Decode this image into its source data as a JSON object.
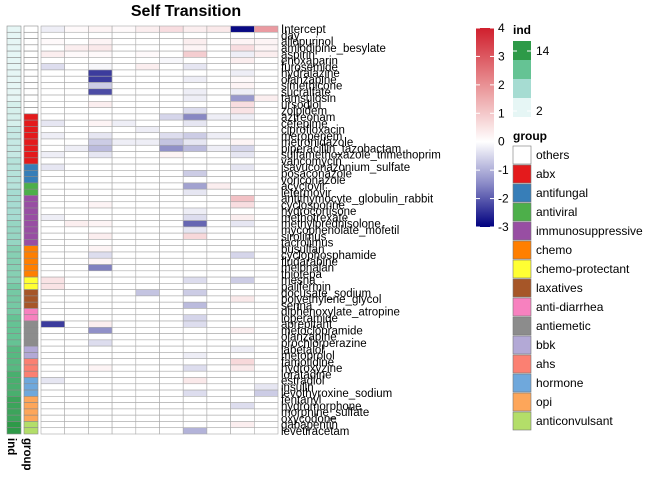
{
  "chart_data": {
    "type": "heatmap",
    "title": "Self Transition",
    "rows": [
      "Intercept",
      "day",
      "allopurinol",
      "amlodipine_besylate",
      "aspirin",
      "enoxaparin",
      "furosemide",
      "hydralazine",
      "olanzapine",
      "simethicone",
      "sucralfate",
      "tamsulosin",
      "ursodiol",
      "zolpidem",
      "aztreonam",
      "cefepime",
      "ciprofloxacin",
      "meropenem",
      "metronidazole",
      "piperacillin_tazobactam",
      "sulfamethoxazole_trimethoprim",
      "vancomycin",
      "isavuconazonium_sulfate",
      "posaconazole",
      "voriconazole",
      "acyclovir",
      "letermovir",
      "antithymocyte_globulin_rabbit",
      "cyclosporine",
      "hydrocortisone",
      "methotrexate",
      "methylprednisolone",
      "mycophenolate_mofetil",
      "sirolimus",
      "tacrolimus",
      "busulfan",
      "cyclophosphamide",
      "fludarabine",
      "melphalan",
      "thiotepa",
      "mesna",
      "palifermin",
      "docusate_sodium",
      "polyethylene_glycol",
      "senna",
      "diphenoxylate_atropine",
      "loperamide",
      "aprepitant",
      "metoclopramide",
      "olanzapine",
      "prochlorperazine",
      "labetalol",
      "metoprolol",
      "famotidine",
      "hydroxyzine",
      "loratadine",
      "estradiol",
      "insulin",
      "levothyroxine_sodium",
      "fentanyl",
      "hydromorphone",
      "morphine_sulfate",
      "oxycodone",
      "gabapentin",
      "levetiracetam"
    ],
    "row_labels_shown": [
      "Intercept",
      "day",
      "allopurinol",
      "amlodipine_besylate",
      "aspirin",
      "enoxaparin",
      "furosemide",
      "hydralazine",
      "olanzapine",
      "simethicone",
      "sucralfate",
      "tamsulosin",
      "ursodiol",
      "zolpidem",
      "aztreonam",
      "cefepime",
      "ciprofloxacin",
      "meropenem",
      "metronidazole",
      "piperacillin_tazobactam",
      "sulfamethoxazole_trimethoprim",
      "vancomycin",
      "isavuconazonium_sulfate",
      "posaconazole",
      "voriconazole",
      "acyclovir",
      "letermovir",
      "antithymocyte_globulin_rabbit",
      "cyclosporine",
      "hydrocortisone",
      "methotrexate",
      "methylprednisolone",
      "mycophenolate_mofetil",
      "sirolimus",
      "tacrolimus",
      "busulfan",
      "cyclophosphamide",
      "fludarabine",
      "melphalan",
      "thiotepa",
      "mesna",
      "palifermin",
      "docusate_sodium",
      "polyethylene_glycol",
      "senna",
      "diphenoxylate_atropine",
      "loperamide",
      "aprepitant",
      "metoclopramide",
      "olanzapine",
      "prochlorperazine",
      "labetalol",
      "metoprolol",
      "famotidine",
      "hydroxyzine",
      "loratadine",
      "estradiol",
      "insulin",
      "levothyroxine_sodium",
      "fentanyl",
      "hydromorphone",
      "morphine_sulfate",
      "oxycodone",
      "gabapentin",
      "levetiracetam"
    ],
    "n_cols": 10,
    "group_seq": [
      "others",
      "others",
      "others",
      "others",
      "others",
      "others",
      "others",
      "others",
      "others",
      "others",
      "others",
      "others",
      "others",
      "others",
      "abx",
      "abx",
      "abx",
      "abx",
      "abx",
      "abx",
      "abx",
      "abx",
      "antifungal",
      "antifungal",
      "antifungal",
      "antiviral",
      "antiviral",
      "immunosuppressive",
      "immunosuppressive",
      "immunosuppressive",
      "immunosuppressive",
      "immunosuppressive",
      "immunosuppressive",
      "immunosuppressive",
      "immunosuppressive",
      "chemo",
      "chemo",
      "chemo",
      "chemo",
      "chemo",
      "chemo-protectant",
      "chemo-protectant",
      "laxatives",
      "laxatives",
      "laxatives",
      "anti-diarrhea",
      "anti-diarrhea",
      "antiemetic",
      "antiemetic",
      "antiemetic",
      "antiemetic",
      "bbk",
      "bbk",
      "ahs",
      "ahs",
      "ahs",
      "hormone",
      "hormone",
      "hormone",
      "opi",
      "opi",
      "opi",
      "opi",
      "anticonvulsant",
      "anticonvulsant"
    ],
    "ind_seq": [
      2,
      2,
      2,
      2,
      2,
      2,
      2,
      2,
      2,
      2,
      2,
      2,
      3,
      3,
      3,
      3,
      4,
      4,
      4,
      4,
      4,
      5,
      5,
      5,
      5,
      5,
      6,
      6,
      6,
      6,
      6,
      7,
      7,
      7,
      7,
      8,
      8,
      8,
      8,
      8,
      8,
      9,
      9,
      9,
      9,
      9,
      10,
      10,
      10,
      10,
      10,
      11,
      11,
      11,
      11,
      12,
      12,
      12,
      12,
      13,
      13,
      13,
      13,
      14,
      14
    ],
    "values": [
      [
        -0.2,
        0.1,
        0.2,
        0.1,
        0.3,
        0.6,
        0.3,
        0.4,
        -2.9,
        1.8
      ],
      [
        0,
        0,
        0,
        0,
        0,
        0,
        0,
        0,
        0,
        0
      ],
      [
        0.1,
        0,
        0.2,
        0,
        0,
        0,
        0.3,
        0,
        0.2,
        0.2
      ],
      [
        0,
        0.3,
        0.4,
        0,
        0,
        0,
        0.2,
        0,
        0.6,
        0.2
      ],
      [
        0.3,
        0.1,
        0.1,
        0,
        0.1,
        0,
        0.9,
        0,
        -0.2,
        0.3
      ],
      [
        0,
        0,
        0,
        0,
        0,
        -0.1,
        0,
        0,
        0.3,
        0
      ],
      [
        -0.4,
        0,
        -0.1,
        0,
        0.3,
        0,
        -0.3,
        0,
        0,
        0
      ],
      [
        0,
        0,
        -2.3,
        0,
        0,
        0,
        0,
        0,
        -0.2,
        0
      ],
      [
        0,
        0,
        -2.3,
        0,
        0,
        0,
        -0.2,
        0,
        0.1,
        0
      ],
      [
        0,
        0,
        -0.6,
        0,
        0,
        0,
        0,
        0,
        0.2,
        0
      ],
      [
        0,
        0,
        -2.1,
        0,
        0,
        0,
        -0.2,
        0,
        -0.2,
        0
      ],
      [
        0,
        0,
        0,
        0,
        0,
        0,
        -0.2,
        0,
        -1.2,
        0.3
      ],
      [
        0,
        0,
        0.3,
        0,
        0,
        0,
        0,
        0,
        0.6,
        0
      ],
      [
        0,
        0,
        0,
        0,
        0,
        0,
        -0.4,
        0,
        0.5,
        0
      ],
      [
        0,
        0,
        0,
        0,
        0,
        -0.5,
        -1.4,
        -0.2,
        -0.2,
        0
      ],
      [
        -0.3,
        0,
        0.2,
        -0.2,
        0,
        0,
        -0.3,
        0,
        0,
        0
      ],
      [
        0,
        0,
        0,
        0,
        -0.2,
        0,
        0,
        0,
        0,
        0
      ],
      [
        -0.2,
        0,
        -0.3,
        0,
        0,
        -0.4,
        -0.6,
        -0.2,
        0,
        0
      ],
      [
        0,
        0,
        -0.6,
        -0.2,
        -0.2,
        -0.7,
        -0.3,
        0,
        0.2,
        0
      ],
      [
        0,
        -0.2,
        -0.8,
        0,
        0,
        -1.3,
        -0.8,
        -0.2,
        -0.5,
        0
      ],
      [
        -0.2,
        0,
        -0.3,
        0,
        0,
        0.2,
        0,
        0,
        -0.3,
        0
      ],
      [
        0,
        0,
        0,
        0,
        0,
        0,
        0,
        0,
        0,
        0
      ],
      [
        -0.3,
        0,
        0,
        0,
        0,
        0,
        0,
        0,
        -0.3,
        0
      ],
      [
        0,
        0,
        0,
        0,
        0,
        0,
        -0.6,
        0,
        0,
        0
      ],
      [
        0,
        0,
        0,
        0,
        0,
        0,
        0,
        0,
        0,
        0
      ],
      [
        0,
        0,
        0,
        0,
        0,
        0,
        -1.1,
        0.3,
        0,
        0
      ],
      [
        0,
        0,
        0,
        0,
        0,
        0,
        -0.3,
        0,
        0,
        0
      ],
      [
        0,
        0,
        0,
        0,
        0,
        0,
        0,
        0,
        1.1,
        0
      ],
      [
        0,
        0,
        0.2,
        0,
        0,
        0,
        0,
        0,
        0.6,
        0
      ],
      [
        0,
        0,
        0,
        0,
        0,
        0,
        -0.2,
        0,
        0,
        0
      ],
      [
        -0.2,
        0,
        0,
        0,
        0,
        0,
        -0.4,
        0,
        0.3,
        0
      ],
      [
        0,
        0.3,
        0.2,
        0,
        0,
        0,
        -1.8,
        0,
        -0.3,
        0
      ],
      [
        0,
        0,
        0,
        0,
        0,
        0,
        -0.3,
        0,
        0,
        0
      ],
      [
        0,
        0,
        0.3,
        0,
        0,
        0,
        0.7,
        0,
        0,
        0
      ],
      [
        0,
        0,
        0,
        0,
        0,
        0,
        0,
        0,
        0,
        0
      ],
      [
        0,
        0,
        0.2,
        0,
        0,
        0,
        0,
        0,
        0,
        0
      ],
      [
        0,
        0,
        -0.4,
        0,
        0,
        0,
        0,
        0,
        -0.5,
        0
      ],
      [
        0,
        0,
        0.2,
        0,
        0,
        0,
        0,
        0,
        0,
        0
      ],
      [
        0,
        0,
        -1.5,
        0,
        0,
        0,
        0,
        0,
        0,
        0
      ],
      [
        0,
        0,
        0,
        0,
        0,
        0,
        0,
        0,
        0,
        0
      ],
      [
        0.5,
        0,
        0,
        0,
        0,
        0,
        -0.4,
        0,
        -0.6,
        0
      ],
      [
        0.5,
        0,
        0,
        0,
        0,
        0,
        0,
        0,
        0,
        0
      ],
      [
        0,
        0,
        0,
        0,
        -0.7,
        0,
        -0.6,
        0,
        0,
        0
      ],
      [
        0,
        0,
        0,
        0,
        0,
        0,
        0,
        0,
        0.4,
        0
      ],
      [
        0,
        0,
        0,
        0,
        0,
        0,
        -0.8,
        0,
        0,
        0
      ],
      [
        0,
        0,
        0,
        0,
        0,
        0,
        0,
        0,
        0,
        0
      ],
      [
        0,
        0,
        0,
        0,
        0,
        0,
        -0.5,
        0,
        0,
        0
      ],
      [
        -2.3,
        0,
        0.3,
        0,
        0,
        0,
        -0.4,
        0,
        0,
        0
      ],
      [
        0,
        0,
        -1.3,
        0,
        0,
        0,
        0,
        0,
        0.3,
        0
      ],
      [
        0,
        0,
        0,
        0,
        0,
        0,
        0,
        0,
        0,
        0
      ],
      [
        0,
        0,
        -0.4,
        0,
        0,
        0,
        0,
        0,
        0,
        0
      ],
      [
        0,
        0,
        0,
        0,
        0,
        0,
        0,
        0,
        -0.2,
        0
      ],
      [
        0,
        0,
        0,
        0,
        0,
        0,
        -0.2,
        0,
        0,
        0
      ],
      [
        0,
        0,
        0,
        0,
        0,
        0,
        0,
        0,
        0.7,
        0
      ],
      [
        0,
        0,
        0.2,
        0,
        0,
        0,
        -0.4,
        0,
        0.4,
        0
      ],
      [
        0,
        0,
        0,
        0,
        0,
        0,
        0,
        0,
        0,
        0
      ],
      [
        -0.3,
        0,
        0,
        0,
        0,
        0,
        0.4,
        0,
        0,
        0
      ],
      [
        0,
        0,
        0,
        0,
        0,
        0,
        0,
        0,
        0,
        -0.3
      ],
      [
        0,
        0,
        0,
        0,
        0,
        0,
        -0.4,
        0,
        0,
        -0.6
      ],
      [
        0,
        0,
        0,
        0,
        0,
        0,
        0,
        0,
        0,
        0
      ],
      [
        0,
        0,
        0,
        0,
        0,
        0,
        0,
        0,
        -0.4,
        0
      ],
      [
        0,
        0,
        0,
        0,
        0,
        0,
        0,
        0,
        0,
        0
      ],
      [
        0,
        0,
        0,
        0,
        0,
        0,
        0,
        0,
        0,
        0
      ],
      [
        0,
        0,
        0,
        0,
        0,
        0,
        0,
        0,
        0.3,
        0
      ],
      [
        0,
        0,
        0,
        0,
        0,
        0,
        -0.9,
        0,
        0,
        0
      ]
    ],
    "color_scale": {
      "min": -3,
      "max": 4,
      "ticks": [
        4,
        3,
        2,
        1,
        0,
        -1,
        -2,
        -3
      ],
      "low_color": "#00007F",
      "mid_color": "#FFFFFF",
      "high_color": "#D01F2D"
    },
    "legends": {
      "ind": {
        "title": "ind",
        "labels": [
          "14",
          "2"
        ],
        "colors": [
          "#2E9A48",
          "#65C394",
          "#A6DCD2",
          "#E6F6F5"
        ]
      },
      "group": {
        "title": "group",
        "items": [
          {
            "label": "others",
            "color": "#FFFFFF"
          },
          {
            "label": "abx",
            "color": "#E41A1C"
          },
          {
            "label": "antifungal",
            "color": "#377EB8"
          },
          {
            "label": "antiviral",
            "color": "#4DAF4A"
          },
          {
            "label": "immunosuppressive",
            "color": "#984EA3"
          },
          {
            "label": "chemo",
            "color": "#FF7F00"
          },
          {
            "label": "chemo-protectant",
            "color": "#FFFF33"
          },
          {
            "label": "laxatives",
            "color": "#A65628"
          },
          {
            "label": "anti-diarrhea",
            "color": "#F781BF"
          },
          {
            "label": "antiemetic",
            "color": "#8C8C8C"
          },
          {
            "label": "bbk",
            "color": "#B3A9D6"
          },
          {
            "label": "ahs",
            "color": "#FB8072"
          },
          {
            "label": "hormone",
            "color": "#6FA8DC"
          },
          {
            "label": "opi",
            "color": "#FDA65A"
          },
          {
            "label": "anticonvulsant",
            "color": "#B3DE69"
          }
        ]
      }
    },
    "annotation_labels": [
      "ind",
      "group"
    ]
  }
}
